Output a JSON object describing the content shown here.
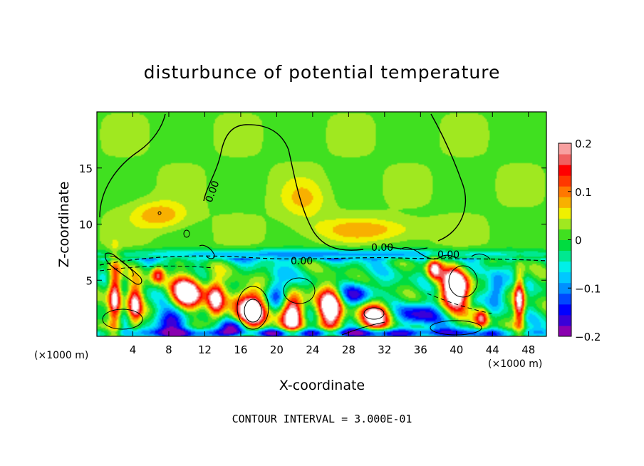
{
  "chart_data": {
    "type": "heatmap",
    "title": "disturbunce of potential temperature",
    "xlabel": "X-coordinate",
    "ylabel": "Z-coordinate",
    "x_unit_label": "(×1000 m)",
    "x_unit_label_right": "(×1000 m)",
    "xlim": [
      0,
      50
    ],
    "ylim": [
      0,
      20
    ],
    "x_ticks": [
      "4",
      "8",
      "12",
      "16",
      "20",
      "24",
      "28",
      "32",
      "36",
      "40",
      "44",
      "48"
    ],
    "x_tick_values": [
      4,
      8,
      12,
      16,
      20,
      24,
      28,
      32,
      36,
      40,
      44,
      48
    ],
    "y_ticks": [
      "5",
      "10",
      "15"
    ],
    "y_tick_values": [
      5,
      10,
      15
    ],
    "colorbar": {
      "min": -0.2,
      "max": 0.2,
      "tick_labels": [
        "0.2",
        "0.1",
        "0",
        "−0.1",
        "−0.2"
      ],
      "tick_values": [
        0.2,
        0.1,
        0,
        -0.1,
        -0.2
      ],
      "colors": [
        "#8a00b0",
        "#3a00d8",
        "#0000ff",
        "#0048ff",
        "#0090ff",
        "#00c8ff",
        "#00f0e8",
        "#00e890",
        "#00dc40",
        "#40e020",
        "#a0e820",
        "#f0f000",
        "#f8b000",
        "#ff7800",
        "#ff3800",
        "#ff0000",
        "#f06060",
        "#f8a0a0"
      ]
    },
    "contour_labels": [
      "0.00",
      "0.00",
      "0.00",
      "0.00"
    ],
    "contour_interval_text": "CONTOUR INTERVAL = 3.000E-01",
    "background_value": 0.02,
    "features": [
      {
        "kind": "warm_patch",
        "x": 23,
        "z": 12.2,
        "rx": 2.5,
        "rz": 1.8,
        "value": 0.05
      },
      {
        "kind": "warm_patch",
        "x": 7,
        "z": 10.8,
        "rx": 3,
        "rz": 1.2,
        "value": 0.07
      },
      {
        "kind": "warm_patch",
        "x": 30,
        "z": 9.5,
        "rx": 6,
        "rz": 1.0,
        "value": 0.06
      },
      {
        "kind": "cold_band",
        "x": 25,
        "z": 7.3,
        "rx": 25,
        "rz": 0.5,
        "value": -0.12
      },
      {
        "kind": "cold_band",
        "x": 25,
        "z": 0.3,
        "rx": 25,
        "rz": 0.4,
        "value": -0.16
      },
      {
        "kind": "hot_cell",
        "x": 2.0,
        "z": 3.6,
        "rx": 0.7,
        "rz": 3.0,
        "value": 0.25
      },
      {
        "kind": "hot_cell",
        "x": 4.2,
        "z": 2.8,
        "rx": 0.8,
        "rz": 2.0,
        "value": 0.22
      },
      {
        "kind": "hot_cell",
        "x": 10.0,
        "z": 3.8,
        "rx": 1.8,
        "rz": 1.5,
        "value": 0.3
      },
      {
        "kind": "hot_cell",
        "x": 13.2,
        "z": 3.2,
        "rx": 1.0,
        "rz": 1.8,
        "value": 0.25
      },
      {
        "kind": "hot_cell",
        "x": 17.3,
        "z": 2.2,
        "rx": 1.6,
        "rz": 2.0,
        "value": 0.35
      },
      {
        "kind": "hot_cell",
        "x": 21.8,
        "z": 2.0,
        "rx": 1.2,
        "rz": 1.8,
        "value": 0.3
      },
      {
        "kind": "hot_cell",
        "x": 26.0,
        "z": 2.5,
        "rx": 1.3,
        "rz": 2.0,
        "value": 0.3
      },
      {
        "kind": "hot_cell",
        "x": 31.0,
        "z": 1.8,
        "rx": 1.8,
        "rz": 1.3,
        "value": 0.25
      },
      {
        "kind": "hot_cell",
        "x": 39.8,
        "z": 4.2,
        "rx": 1.6,
        "rz": 1.8,
        "value": 0.35
      },
      {
        "kind": "hot_cell",
        "x": 47.0,
        "z": 3.2,
        "rx": 0.6,
        "rz": 2.5,
        "value": 0.25
      },
      {
        "kind": "hot_cell",
        "x": 6.8,
        "z": 5.5,
        "rx": 0.8,
        "rz": 0.8,
        "value": 0.2
      },
      {
        "kind": "hot_cell",
        "x": 37.5,
        "z": 6.0,
        "rx": 0.8,
        "rz": 1.0,
        "value": 0.22
      },
      {
        "kind": "hot_cell",
        "x": 42.8,
        "z": 1.6,
        "rx": 0.8,
        "rz": 1.0,
        "value": 0.2
      },
      {
        "kind": "cold_cell",
        "x": 8.5,
        "z": 1.5,
        "rx": 2.0,
        "rz": 1.2,
        "value": -0.16
      },
      {
        "kind": "cold_cell",
        "x": 20.0,
        "z": 3.8,
        "rx": 1.3,
        "rz": 1.5,
        "value": -0.15
      },
      {
        "kind": "cold_cell",
        "x": 29.0,
        "z": 3.8,
        "rx": 1.8,
        "rz": 1.0,
        "value": -0.14
      },
      {
        "kind": "cold_cell",
        "x": 36.0,
        "z": 2.0,
        "rx": 2.5,
        "rz": 1.0,
        "value": -0.15
      },
      {
        "kind": "cold_cell",
        "x": 44.5,
        "z": 4.2,
        "rx": 1.0,
        "rz": 1.5,
        "value": -0.14
      },
      {
        "kind": "cold_cell",
        "x": 15.5,
        "z": 0.9,
        "rx": 1.8,
        "rz": 0.6,
        "value": -0.18
      }
    ]
  }
}
